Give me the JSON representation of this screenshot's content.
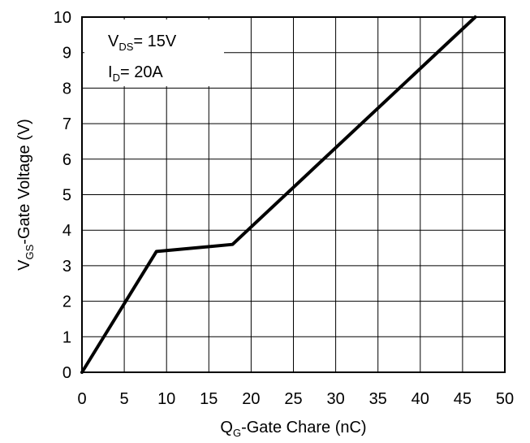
{
  "chart_data": {
    "type": "line",
    "xlabel": {
      "main": "Q",
      "sub": "G",
      "rest": "-Gate Chare (nC)"
    },
    "ylabel": {
      "main": "V",
      "sub": "GS",
      "rest": "-Gate Voltage (V)"
    },
    "xlim": [
      0,
      50
    ],
    "ylim": [
      0,
      10
    ],
    "xticks": [
      0,
      5,
      10,
      15,
      20,
      25,
      30,
      35,
      40,
      45,
      50
    ],
    "yticks": [
      0,
      1,
      2,
      3,
      4,
      5,
      6,
      7,
      8,
      9,
      10
    ],
    "grid": true,
    "annotations": [
      {
        "main": "V",
        "sub": "DS",
        "rest": "= 15V"
      },
      {
        "main": "I",
        "sub": "D",
        "rest": "= 20A"
      }
    ],
    "series": [
      {
        "x": [
          0,
          8.8,
          17.8,
          46.5
        ],
        "y": [
          0,
          3.4,
          3.6,
          10
        ],
        "color": "#000000"
      }
    ]
  }
}
